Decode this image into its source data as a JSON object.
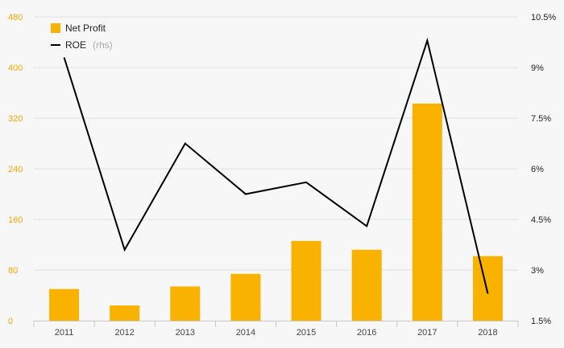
{
  "chart_data": {
    "type": "bar",
    "categories": [
      "2011",
      "2012",
      "2013",
      "2014",
      "2015",
      "2016",
      "2017",
      "2018"
    ],
    "series": [
      {
        "name": "Net Profit",
        "type": "bar",
        "axis": "left",
        "color": "#f9b200",
        "values": [
          50,
          24,
          54,
          74,
          126,
          112,
          343,
          102
        ]
      },
      {
        "name": "ROE",
        "name_suffix": "(rhs)",
        "type": "line",
        "axis": "right",
        "color": "#000000",
        "values": [
          9.3,
          3.6,
          6.75,
          5.25,
          5.6,
          4.3,
          9.8,
          2.3
        ]
      }
    ],
    "y_left": {
      "ylim": [
        0,
        480
      ],
      "ticks": [
        "0",
        "80",
        "160",
        "240",
        "320",
        "400",
        "480"
      ],
      "tick_color": "#f5a800"
    },
    "y_right": {
      "ylim": [
        1.5,
        10.5
      ],
      "ticks": [
        "1.5%",
        "3%",
        "4.5%",
        "6%",
        "7.5%",
        "9%",
        "10.5%"
      ]
    },
    "grid": true,
    "legend": "top-left"
  }
}
